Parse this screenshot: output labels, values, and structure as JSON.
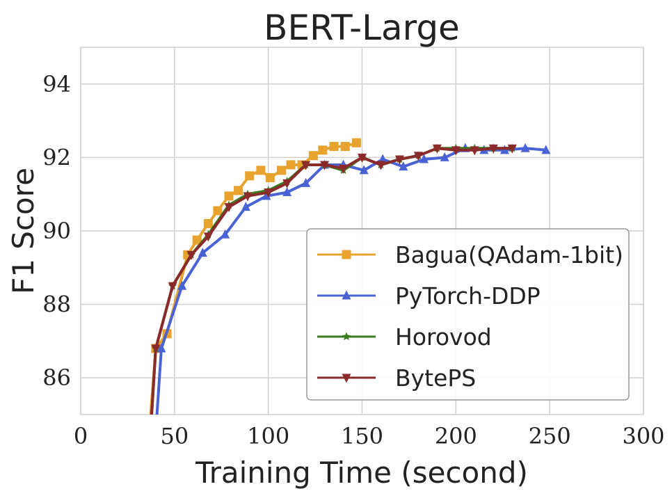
{
  "chart_data": {
    "type": "line",
    "title": "BERT-Large",
    "xlabel": "Training Time (second)",
    "ylabel": "F1 Score",
    "xlim": [
      0,
      300
    ],
    "ylim": [
      85,
      95
    ],
    "xticks": [
      0,
      50,
      100,
      150,
      200,
      250,
      300
    ],
    "yticks": [
      86,
      88,
      90,
      92,
      94
    ],
    "grid": true,
    "legend_position": "lower-right",
    "series": [
      {
        "name": "Bagua(QAdam-1bit)",
        "color": "#e8a32e",
        "marker": "square",
        "x": [
          35,
          40,
          46,
          57,
          62,
          68,
          73,
          79,
          84,
          90,
          96,
          101,
          107,
          112,
          118,
          124,
          129,
          135,
          141,
          147
        ],
        "y": [
          83.5,
          86.8,
          87.2,
          89.35,
          89.75,
          90.2,
          90.55,
          90.95,
          91.1,
          91.5,
          91.65,
          91.45,
          91.65,
          91.8,
          91.8,
          92.05,
          92.2,
          92.3,
          92.3,
          92.4
        ]
      },
      {
        "name": "PyTorch-DDP",
        "color": "#4a63d4",
        "marker": "triangle-up",
        "x": [
          38,
          43,
          54,
          65,
          77,
          88,
          99,
          110,
          120,
          130,
          140,
          151,
          161,
          172,
          183,
          194,
          205,
          215,
          226,
          237,
          248
        ],
        "y": [
          83.0,
          86.8,
          88.5,
          89.4,
          89.9,
          90.65,
          90.95,
          91.05,
          91.3,
          91.8,
          91.8,
          91.65,
          91.95,
          91.75,
          91.95,
          92.0,
          92.25,
          92.2,
          92.2,
          92.25,
          92.2
        ]
      },
      {
        "name": "Horovod",
        "color": "#3a7d1e",
        "marker": "star",
        "x": [
          36,
          40,
          49,
          59,
          68,
          79,
          89,
          100,
          110,
          120,
          130,
          140,
          150,
          160,
          170,
          180,
          190,
          200,
          210,
          220,
          230
        ],
        "y": [
          83.5,
          86.8,
          88.5,
          89.35,
          89.9,
          90.7,
          91.0,
          91.1,
          91.35,
          91.8,
          91.8,
          91.65,
          92.0,
          91.8,
          91.95,
          92.05,
          92.25,
          92.25,
          92.25,
          92.25,
          92.25
        ]
      },
      {
        "name": "BytePS",
        "color": "#8b2a2a",
        "marker": "triangle-down",
        "x": [
          36,
          40,
          49,
          59,
          68,
          79,
          89,
          100,
          110,
          120,
          130,
          140,
          150,
          160,
          170,
          180,
          190,
          200,
          210,
          220,
          230
        ],
        "y": [
          83.5,
          86.8,
          88.5,
          89.35,
          89.85,
          90.65,
          90.95,
          91.05,
          91.3,
          91.8,
          91.8,
          91.7,
          92.0,
          91.8,
          91.95,
          92.05,
          92.25,
          92.2,
          92.2,
          92.25,
          92.25
        ]
      }
    ]
  }
}
